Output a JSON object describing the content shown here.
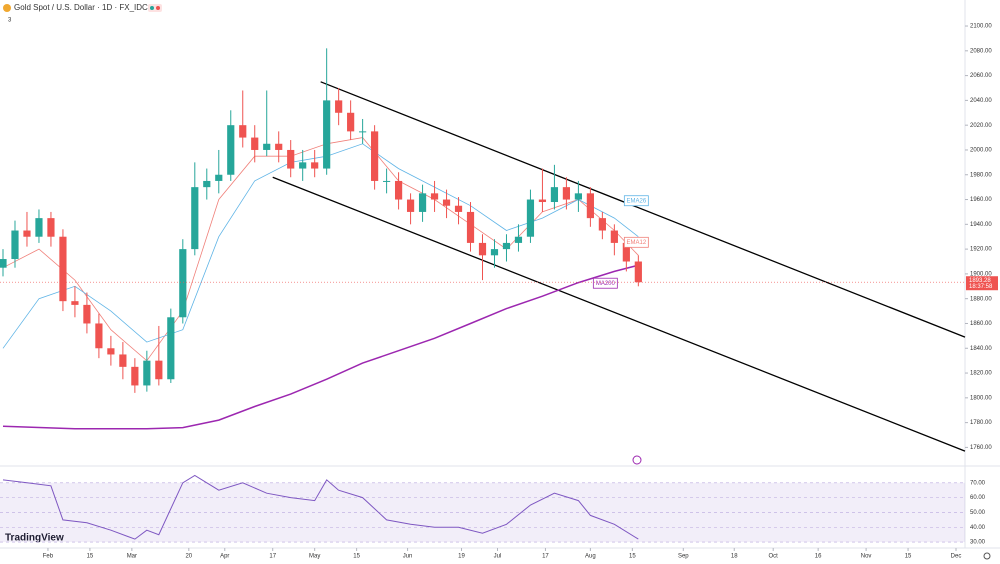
{
  "chart_data": [
    {
      "type": "candlestick",
      "title": "Gold Spot / U.S. Dollar · 1D · FX_IDC",
      "subtitle": "3",
      "brand": "TradingView",
      "countdown": "18:37:58",
      "up_color": "#26a69a",
      "down_color": "#ef5350",
      "xlim": [
        16,
        338
      ],
      "xticks": [
        {
          "value": 32,
          "label": "Feb"
        },
        {
          "value": 46,
          "label": "15"
        },
        {
          "value": 60,
          "label": "Mar"
        },
        {
          "value": 79,
          "label": "20"
        },
        {
          "value": 91,
          "label": "Apr"
        },
        {
          "value": 107,
          "label": "17"
        },
        {
          "value": 121,
          "label": "May"
        },
        {
          "value": 135,
          "label": "15"
        },
        {
          "value": 152,
          "label": "Jun"
        },
        {
          "value": 170,
          "label": "19"
        },
        {
          "value": 182,
          "label": "Jul"
        },
        {
          "value": 198,
          "label": "17"
        },
        {
          "value": 213,
          "label": "Aug"
        },
        {
          "value": 227,
          "label": "15"
        },
        {
          "value": 244,
          "label": "Sep"
        },
        {
          "value": 261,
          "label": "18"
        },
        {
          "value": 274,
          "label": "Oct"
        },
        {
          "value": 289,
          "label": "16"
        },
        {
          "value": 305,
          "label": "Nov"
        },
        {
          "value": 319,
          "label": "15"
        },
        {
          "value": 335,
          "label": "Dec"
        }
      ],
      "ylim": [
        1745,
        2121
      ],
      "yticks": [
        {
          "value": 1760,
          "label": "1760.00"
        },
        {
          "value": 1780,
          "label": "1780.00"
        },
        {
          "value": 1800,
          "label": "1800.00"
        },
        {
          "value": 1820,
          "label": "1820.00"
        },
        {
          "value": 1840,
          "label": "1840.00"
        },
        {
          "value": 1860,
          "label": "1860.00"
        },
        {
          "value": 1880,
          "label": "1880.00"
        },
        {
          "value": 1900,
          "label": "1900.00"
        },
        {
          "value": 1920,
          "label": "1920.00"
        },
        {
          "value": 1940,
          "label": "1940.00"
        },
        {
          "value": 1960,
          "label": "1960.00"
        },
        {
          "value": 1980,
          "label": "1980.00"
        },
        {
          "value": 2000,
          "label": "2000.00"
        },
        {
          "value": 2020,
          "label": "2020.00"
        },
        {
          "value": 2040,
          "label": "2040.00"
        },
        {
          "value": 2060,
          "label": "2060.00"
        },
        {
          "value": 2080,
          "label": "2080.00"
        },
        {
          "value": 2100,
          "label": "2100.00"
        }
      ],
      "x": [
        17,
        21,
        25,
        29,
        33,
        37,
        41,
        45,
        49,
        53,
        57,
        61,
        65,
        69,
        73,
        77,
        81,
        85,
        89,
        93,
        97,
        101,
        105,
        109,
        113,
        117,
        121,
        125,
        129,
        133,
        137,
        141,
        145,
        149,
        153,
        157,
        161,
        165,
        169,
        173,
        177,
        181,
        185,
        189,
        193,
        197,
        201,
        205,
        209,
        213,
        217,
        221,
        225,
        229
      ],
      "open": [
        1905,
        1912,
        1935,
        1930,
        1945,
        1930,
        1878,
        1875,
        1860,
        1840,
        1835,
        1825,
        1810,
        1830,
        1815,
        1865,
        1920,
        1970,
        1975,
        1980,
        2020,
        2010,
        2000,
        2005,
        2000,
        1985,
        1990,
        1985,
        2040,
        2030,
        2015,
        2015,
        1975,
        1975,
        1960,
        1950,
        1965,
        1960,
        1955,
        1950,
        1925,
        1915,
        1920,
        1925,
        1930,
        1960,
        1958,
        1970,
        1960,
        1965,
        1945,
        1935,
        1925,
        1910
      ],
      "high": [
        1920,
        1943,
        1950,
        1952,
        1950,
        1936,
        1890,
        1885,
        1868,
        1850,
        1845,
        1832,
        1838,
        1858,
        1872,
        1928,
        1990,
        1985,
        2000,
        2032,
        2048,
        2020,
        2048,
        2015,
        2008,
        2000,
        2000,
        2082,
        2050,
        2040,
        2025,
        2020,
        1985,
        1982,
        1965,
        1972,
        1975,
        1968,
        1962,
        1958,
        1932,
        1928,
        1932,
        1940,
        1968,
        1985,
        1988,
        1978,
        1975,
        1970,
        1950,
        1940,
        1928,
        1915
      ],
      "low": [
        1898,
        1905,
        1922,
        1925,
        1922,
        1870,
        1865,
        1852,
        1832,
        1826,
        1815,
        1804,
        1805,
        1810,
        1812,
        1860,
        1915,
        1960,
        1965,
        1975,
        2002,
        1990,
        1995,
        1990,
        1978,
        1975,
        1978,
        1980,
        2020,
        2008,
        2005,
        1968,
        1965,
        1952,
        1940,
        1942,
        1950,
        1945,
        1940,
        1918,
        1895,
        1905,
        1910,
        1918,
        1925,
        1950,
        1952,
        1952,
        1950,
        1938,
        1928,
        1915,
        1902,
        1890
      ],
      "close": [
        1912,
        1935,
        1930,
        1945,
        1930,
        1878,
        1875,
        1860,
        1840,
        1835,
        1825,
        1810,
        1830,
        1815,
        1865,
        1920,
        1970,
        1975,
        1980,
        2020,
        2010,
        2000,
        2005,
        2000,
        1985,
        1990,
        1985,
        2040,
        2030,
        2015,
        2015,
        1975,
        1975,
        1960,
        1950,
        1965,
        1960,
        1955,
        1950,
        1925,
        1915,
        1920,
        1925,
        1930,
        1960,
        1958,
        1970,
        1960,
        1965,
        1945,
        1935,
        1925,
        1910,
        1893.28
      ],
      "series": [
        {
          "name": "EMA12",
          "color": "#f0807a",
          "x": [
            17,
            29,
            41,
            53,
            65,
            77,
            89,
            101,
            113,
            125,
            137,
            149,
            161,
            173,
            185,
            197,
            209,
            221,
            229
          ],
          "values": [
            1905,
            1920,
            1895,
            1855,
            1830,
            1870,
            1960,
            1995,
            1995,
            2005,
            2010,
            1975,
            1960,
            1940,
            1920,
            1950,
            1960,
            1935,
            1915
          ]
        },
        {
          "name": "EMA26",
          "color": "#5fb4e6",
          "x": [
            17,
            29,
            41,
            53,
            65,
            77,
            89,
            101,
            113,
            125,
            137,
            149,
            161,
            173,
            185,
            197,
            209,
            221,
            229
          ],
          "values": [
            1840,
            1880,
            1890,
            1870,
            1845,
            1855,
            1930,
            1975,
            1990,
            1995,
            2005,
            1985,
            1970,
            1955,
            1935,
            1945,
            1960,
            1945,
            1930
          ]
        },
        {
          "name": "MA200",
          "color": "#9c27b0",
          "x": [
            17,
            41,
            65,
            77,
            89,
            101,
            113,
            125,
            137,
            149,
            161,
            173,
            185,
            197,
            209,
            221,
            229
          ],
          "values": [
            1777,
            1775,
            1775,
            1776,
            1782,
            1793,
            1803,
            1815,
            1828,
            1838,
            1848,
            1860,
            1872,
            1882,
            1893,
            1902,
            1907
          ]
        }
      ],
      "trendlines": [
        {
          "x": [
            123,
            338
          ],
          "values": [
            2055,
            1849
          ]
        },
        {
          "x": [
            107,
            338
          ],
          "values": [
            1978,
            1757
          ]
        }
      ]
    },
    {
      "type": "line",
      "ylim": [
        26,
        80
      ],
      "yticks": [
        {
          "value": 30,
          "label": "30.00"
        },
        {
          "value": 40,
          "label": "40.00"
        },
        {
          "value": 50,
          "label": "50.00"
        },
        {
          "value": 60,
          "label": "60.00"
        },
        {
          "value": 70,
          "label": "70.00"
        }
      ],
      "band": [
        30,
        70
      ],
      "color": "#7e57c2",
      "x": [
        17,
        25,
        33,
        37,
        45,
        53,
        61,
        65,
        69,
        77,
        81,
        89,
        97,
        105,
        113,
        121,
        125,
        129,
        137,
        145,
        153,
        161,
        169,
        177,
        185,
        193,
        201,
        209,
        213,
        221,
        229
      ],
      "values": [
        72,
        70,
        68,
        45,
        43,
        38,
        32,
        38,
        35,
        70,
        75,
        65,
        70,
        63,
        60,
        58,
        72,
        65,
        60,
        45,
        42,
        40,
        40,
        36,
        42,
        55,
        63,
        58,
        48,
        42,
        32
      ]
    }
  ]
}
